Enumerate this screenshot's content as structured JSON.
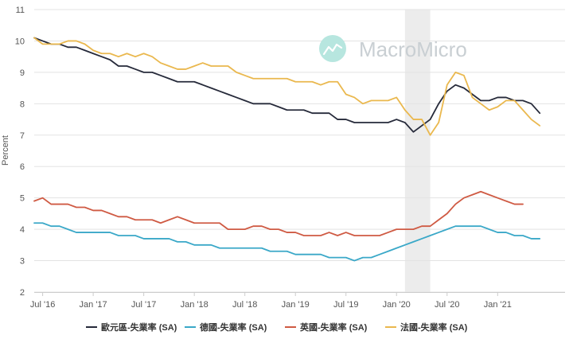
{
  "watermark": {
    "text": "MacroMicro"
  },
  "chart_data": {
    "type": "line",
    "ylabel": "Percent",
    "ylim": [
      2,
      11
    ],
    "yticks": [
      2,
      3,
      4,
      5,
      6,
      7,
      8,
      9,
      10,
      11
    ],
    "xlim": [
      "2016-06",
      "2021-09"
    ],
    "xticks": [
      {
        "label": "Jul '16",
        "date": "2016-07"
      },
      {
        "label": "Jan '17",
        "date": "2017-01"
      },
      {
        "label": "Jul '17",
        "date": "2017-07"
      },
      {
        "label": "Jan '18",
        "date": "2018-01"
      },
      {
        "label": "Jul '18",
        "date": "2018-07"
      },
      {
        "label": "Jan '19",
        "date": "2019-01"
      },
      {
        "label": "Jul '19",
        "date": "2019-07"
      },
      {
        "label": "Jan '20",
        "date": "2020-01"
      },
      {
        "label": "Jul '20",
        "date": "2020-07"
      },
      {
        "label": "Jan '21",
        "date": "2021-01"
      }
    ],
    "shaded_region": {
      "from": "2020-02",
      "to": "2020-05"
    },
    "grid": true,
    "legend_position": "bottom",
    "series": [
      {
        "name": "歐元區-失業率 (SA)",
        "color": "#262a3a",
        "points": [
          [
            "2016-06",
            10.1
          ],
          [
            "2016-07",
            10.0
          ],
          [
            "2016-08",
            9.9
          ],
          [
            "2016-09",
            9.9
          ],
          [
            "2016-10",
            9.8
          ],
          [
            "2016-11",
            9.8
          ],
          [
            "2016-12",
            9.7
          ],
          [
            "2017-01",
            9.6
          ],
          [
            "2017-02",
            9.5
          ],
          [
            "2017-03",
            9.4
          ],
          [
            "2017-04",
            9.2
          ],
          [
            "2017-05",
            9.2
          ],
          [
            "2017-06",
            9.1
          ],
          [
            "2017-07",
            9.0
          ],
          [
            "2017-08",
            9.0
          ],
          [
            "2017-09",
            8.9
          ],
          [
            "2017-10",
            8.8
          ],
          [
            "2017-11",
            8.7
          ],
          [
            "2017-12",
            8.7
          ],
          [
            "2018-01",
            8.7
          ],
          [
            "2018-02",
            8.6
          ],
          [
            "2018-03",
            8.5
          ],
          [
            "2018-04",
            8.4
          ],
          [
            "2018-05",
            8.3
          ],
          [
            "2018-06",
            8.2
          ],
          [
            "2018-07",
            8.1
          ],
          [
            "2018-08",
            8.0
          ],
          [
            "2018-09",
            8.0
          ],
          [
            "2018-10",
            8.0
          ],
          [
            "2018-11",
            7.9
          ],
          [
            "2018-12",
            7.8
          ],
          [
            "2019-01",
            7.8
          ],
          [
            "2019-02",
            7.8
          ],
          [
            "2019-03",
            7.7
          ],
          [
            "2019-04",
            7.7
          ],
          [
            "2019-05",
            7.7
          ],
          [
            "2019-06",
            7.5
          ],
          [
            "2019-07",
            7.5
          ],
          [
            "2019-08",
            7.4
          ],
          [
            "2019-09",
            7.4
          ],
          [
            "2019-10",
            7.4
          ],
          [
            "2019-11",
            7.4
          ],
          [
            "2019-12",
            7.4
          ],
          [
            "2020-01",
            7.5
          ],
          [
            "2020-02",
            7.4
          ],
          [
            "2020-03",
            7.1
          ],
          [
            "2020-04",
            7.3
          ],
          [
            "2020-05",
            7.5
          ],
          [
            "2020-06",
            8.0
          ],
          [
            "2020-07",
            8.4
          ],
          [
            "2020-08",
            8.6
          ],
          [
            "2020-09",
            8.5
          ],
          [
            "2020-10",
            8.3
          ],
          [
            "2020-11",
            8.1
          ],
          [
            "2020-12",
            8.1
          ],
          [
            "2021-01",
            8.2
          ],
          [
            "2021-02",
            8.2
          ],
          [
            "2021-03",
            8.1
          ],
          [
            "2021-04",
            8.1
          ],
          [
            "2021-05",
            8.0
          ],
          [
            "2021-06",
            7.7
          ]
        ]
      },
      {
        "name": "德國-失業率 (SA)",
        "color": "#3aa8c8",
        "points": [
          [
            "2016-06",
            4.2
          ],
          [
            "2016-07",
            4.2
          ],
          [
            "2016-08",
            4.1
          ],
          [
            "2016-09",
            4.1
          ],
          [
            "2016-10",
            4.0
          ],
          [
            "2016-11",
            3.9
          ],
          [
            "2016-12",
            3.9
          ],
          [
            "2017-01",
            3.9
          ],
          [
            "2017-02",
            3.9
          ],
          [
            "2017-03",
            3.9
          ],
          [
            "2017-04",
            3.8
          ],
          [
            "2017-05",
            3.8
          ],
          [
            "2017-06",
            3.8
          ],
          [
            "2017-07",
            3.7
          ],
          [
            "2017-08",
            3.7
          ],
          [
            "2017-09",
            3.7
          ],
          [
            "2017-10",
            3.7
          ],
          [
            "2017-11",
            3.6
          ],
          [
            "2017-12",
            3.6
          ],
          [
            "2018-01",
            3.5
          ],
          [
            "2018-02",
            3.5
          ],
          [
            "2018-03",
            3.5
          ],
          [
            "2018-04",
            3.4
          ],
          [
            "2018-05",
            3.4
          ],
          [
            "2018-06",
            3.4
          ],
          [
            "2018-07",
            3.4
          ],
          [
            "2018-08",
            3.4
          ],
          [
            "2018-09",
            3.4
          ],
          [
            "2018-10",
            3.3
          ],
          [
            "2018-11",
            3.3
          ],
          [
            "2018-12",
            3.3
          ],
          [
            "2019-01",
            3.2
          ],
          [
            "2019-02",
            3.2
          ],
          [
            "2019-03",
            3.2
          ],
          [
            "2019-04",
            3.2
          ],
          [
            "2019-05",
            3.1
          ],
          [
            "2019-06",
            3.1
          ],
          [
            "2019-07",
            3.1
          ],
          [
            "2019-08",
            3.0
          ],
          [
            "2019-09",
            3.1
          ],
          [
            "2019-10",
            3.1
          ],
          [
            "2019-11",
            3.2
          ],
          [
            "2019-12",
            3.3
          ],
          [
            "2020-01",
            3.4
          ],
          [
            "2020-02",
            3.5
          ],
          [
            "2020-03",
            3.6
          ],
          [
            "2020-04",
            3.7
          ],
          [
            "2020-05",
            3.8
          ],
          [
            "2020-06",
            3.9
          ],
          [
            "2020-07",
            4.0
          ],
          [
            "2020-08",
            4.1
          ],
          [
            "2020-09",
            4.1
          ],
          [
            "2020-10",
            4.1
          ],
          [
            "2020-11",
            4.1
          ],
          [
            "2020-12",
            4.0
          ],
          [
            "2021-01",
            3.9
          ],
          [
            "2021-02",
            3.9
          ],
          [
            "2021-03",
            3.8
          ],
          [
            "2021-04",
            3.8
          ],
          [
            "2021-05",
            3.7
          ],
          [
            "2021-06",
            3.7
          ]
        ]
      },
      {
        "name": "英國-失業率 (SA)",
        "color": "#cf5a43",
        "points": [
          [
            "2016-06",
            4.9
          ],
          [
            "2016-07",
            5.0
          ],
          [
            "2016-08",
            4.8
          ],
          [
            "2016-09",
            4.8
          ],
          [
            "2016-10",
            4.8
          ],
          [
            "2016-11",
            4.7
          ],
          [
            "2016-12",
            4.7
          ],
          [
            "2017-01",
            4.6
          ],
          [
            "2017-02",
            4.6
          ],
          [
            "2017-03",
            4.5
          ],
          [
            "2017-04",
            4.4
          ],
          [
            "2017-05",
            4.4
          ],
          [
            "2017-06",
            4.3
          ],
          [
            "2017-07",
            4.3
          ],
          [
            "2017-08",
            4.3
          ],
          [
            "2017-09",
            4.2
          ],
          [
            "2017-10",
            4.3
          ],
          [
            "2017-11",
            4.4
          ],
          [
            "2017-12",
            4.3
          ],
          [
            "2018-01",
            4.2
          ],
          [
            "2018-02",
            4.2
          ],
          [
            "2018-03",
            4.2
          ],
          [
            "2018-04",
            4.2
          ],
          [
            "2018-05",
            4.0
          ],
          [
            "2018-06",
            4.0
          ],
          [
            "2018-07",
            4.0
          ],
          [
            "2018-08",
            4.1
          ],
          [
            "2018-09",
            4.1
          ],
          [
            "2018-10",
            4.0
          ],
          [
            "2018-11",
            4.0
          ],
          [
            "2018-12",
            3.9
          ],
          [
            "2019-01",
            3.9
          ],
          [
            "2019-02",
            3.8
          ],
          [
            "2019-03",
            3.8
          ],
          [
            "2019-04",
            3.8
          ],
          [
            "2019-05",
            3.9
          ],
          [
            "2019-06",
            3.8
          ],
          [
            "2019-07",
            3.9
          ],
          [
            "2019-08",
            3.8
          ],
          [
            "2019-09",
            3.8
          ],
          [
            "2019-10",
            3.8
          ],
          [
            "2019-11",
            3.8
          ],
          [
            "2019-12",
            3.9
          ],
          [
            "2020-01",
            4.0
          ],
          [
            "2020-02",
            4.0
          ],
          [
            "2020-03",
            4.0
          ],
          [
            "2020-04",
            4.1
          ],
          [
            "2020-05",
            4.1
          ],
          [
            "2020-06",
            4.3
          ],
          [
            "2020-07",
            4.5
          ],
          [
            "2020-08",
            4.8
          ],
          [
            "2020-09",
            5.0
          ],
          [
            "2020-10",
            5.1
          ],
          [
            "2020-11",
            5.2
          ],
          [
            "2020-12",
            5.1
          ],
          [
            "2021-01",
            5.0
          ],
          [
            "2021-02",
            4.9
          ],
          [
            "2021-03",
            4.8
          ],
          [
            "2021-04",
            4.8
          ]
        ]
      },
      {
        "name": "法國-失業率 (SA)",
        "color": "#eab84e",
        "points": [
          [
            "2016-06",
            10.1
          ],
          [
            "2016-07",
            9.9
          ],
          [
            "2016-08",
            9.9
          ],
          [
            "2016-09",
            9.9
          ],
          [
            "2016-10",
            10.0
          ],
          [
            "2016-11",
            10.0
          ],
          [
            "2016-12",
            9.9
          ],
          [
            "2017-01",
            9.7
          ],
          [
            "2017-02",
            9.6
          ],
          [
            "2017-03",
            9.6
          ],
          [
            "2017-04",
            9.5
          ],
          [
            "2017-05",
            9.6
          ],
          [
            "2017-06",
            9.5
          ],
          [
            "2017-07",
            9.6
          ],
          [
            "2017-08",
            9.5
          ],
          [
            "2017-09",
            9.3
          ],
          [
            "2017-10",
            9.2
          ],
          [
            "2017-11",
            9.1
          ],
          [
            "2017-12",
            9.1
          ],
          [
            "2018-01",
            9.2
          ],
          [
            "2018-02",
            9.3
          ],
          [
            "2018-03",
            9.2
          ],
          [
            "2018-04",
            9.2
          ],
          [
            "2018-05",
            9.2
          ],
          [
            "2018-06",
            9.0
          ],
          [
            "2018-07",
            8.9
          ],
          [
            "2018-08",
            8.8
          ],
          [
            "2018-09",
            8.8
          ],
          [
            "2018-10",
            8.8
          ],
          [
            "2018-11",
            8.8
          ],
          [
            "2018-12",
            8.8
          ],
          [
            "2019-01",
            8.7
          ],
          [
            "2019-02",
            8.7
          ],
          [
            "2019-03",
            8.7
          ],
          [
            "2019-04",
            8.6
          ],
          [
            "2019-05",
            8.7
          ],
          [
            "2019-06",
            8.7
          ],
          [
            "2019-07",
            8.3
          ],
          [
            "2019-08",
            8.2
          ],
          [
            "2019-09",
            8.0
          ],
          [
            "2019-10",
            8.1
          ],
          [
            "2019-11",
            8.1
          ],
          [
            "2019-12",
            8.1
          ],
          [
            "2020-01",
            8.2
          ],
          [
            "2020-02",
            7.8
          ],
          [
            "2020-03",
            7.5
          ],
          [
            "2020-04",
            7.5
          ],
          [
            "2020-05",
            7.0
          ],
          [
            "2020-06",
            7.4
          ],
          [
            "2020-07",
            8.6
          ],
          [
            "2020-08",
            9.0
          ],
          [
            "2020-09",
            8.9
          ],
          [
            "2020-10",
            8.2
          ],
          [
            "2020-11",
            8.0
          ],
          [
            "2020-12",
            7.8
          ],
          [
            "2021-01",
            7.9
          ],
          [
            "2021-02",
            8.1
          ],
          [
            "2021-03",
            8.1
          ],
          [
            "2021-04",
            7.8
          ],
          [
            "2021-05",
            7.5
          ],
          [
            "2021-06",
            7.3
          ]
        ]
      }
    ]
  }
}
